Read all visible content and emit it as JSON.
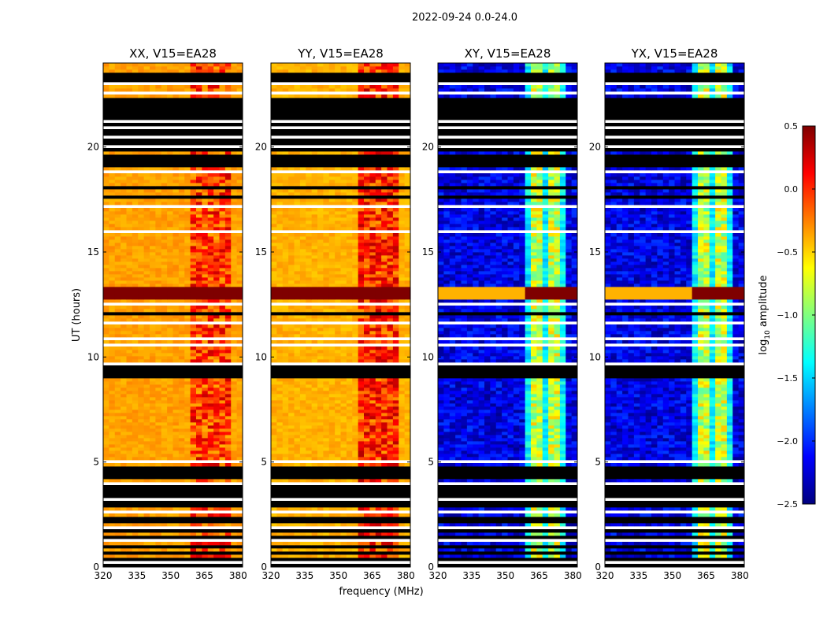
{
  "suptitle": "2022-09-24 0.0-24.0",
  "xlabel": "frequency (MHz)",
  "ylabel": "UT (hours)",
  "chart_data": {
    "type": "heatmap",
    "title": "2022-09-24 0.0-24.0",
    "xlabel": "frequency (MHz)",
    "ylabel": "UT (hours)",
    "xlim": [
      320,
      382
    ],
    "ylim": [
      0,
      24
    ],
    "xticks": [
      "320",
      "335",
      "350",
      "365",
      "380"
    ],
    "yticks": [
      "0",
      "5",
      "10",
      "15",
      "20"
    ],
    "panels": [
      {
        "title": "XX, V15=EA28",
        "kind": "parallel",
        "base_value": -0.35,
        "band_value": -0.05
      },
      {
        "title": "YY, V15=EA28",
        "kind": "parallel",
        "base_value": -0.4,
        "band_value": 0.0
      },
      {
        "title": "XY, V15=EA28",
        "kind": "cross",
        "base_value": -2.2,
        "band_value": -0.8
      },
      {
        "title": "YX, V15=EA28",
        "kind": "cross",
        "base_value": -2.2,
        "band_value": -0.8
      }
    ],
    "rfi_band_mhz": [
      360,
      378
    ],
    "bright_time_band_hours": [
      12.8,
      13.4
    ],
    "colorbar": {
      "label": "log10 amplitude",
      "vmin": -2.5,
      "vmax": 0.5,
      "ticks": [
        "0.5",
        "0.0",
        "−0.5",
        "−1.0",
        "−1.5",
        "−2.0",
        "−2.5"
      ],
      "colormap": [
        "#00007f",
        "#0000ff",
        "#007fff",
        "#00ffff",
        "#7fff7f",
        "#ffff00",
        "#ff7f00",
        "#ff0000",
        "#7f0000"
      ]
    }
  }
}
